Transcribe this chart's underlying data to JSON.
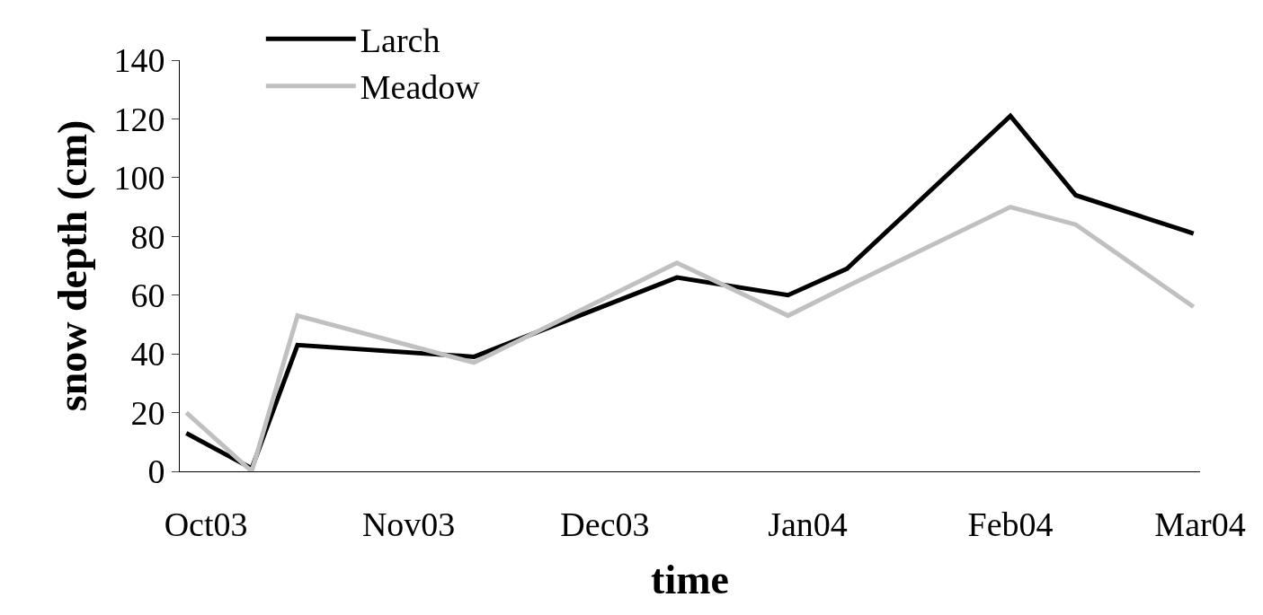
{
  "chart_data": {
    "type": "line",
    "xlabel": "time",
    "ylabel": "snow depth (cm)",
    "x": [
      "2003-09-28",
      "2003-10-08",
      "2003-10-15",
      "2003-11-11",
      "2003-12-12",
      "2003-12-29",
      "2004-01-07",
      "2004-02-01",
      "2004-02-11",
      "2004-02-29"
    ],
    "series": [
      {
        "name": "Larch",
        "color": "#000000",
        "values": [
          13,
          1,
          43,
          39,
          66,
          60,
          69,
          121,
          94,
          81
        ]
      },
      {
        "name": "Meadow",
        "color": "#c0c0c0",
        "values": [
          20,
          0,
          53,
          37,
          71,
          53,
          63,
          90,
          84,
          56
        ]
      }
    ],
    "xlim": [
      "2003-09-27",
      "2004-03-01"
    ],
    "xticks": [
      {
        "value": "2003-10-01",
        "label": "Oct03"
      },
      {
        "value": "2003-11-01",
        "label": "Nov03"
      },
      {
        "value": "2003-12-01",
        "label": "Dec03"
      },
      {
        "value": "2004-01-01",
        "label": "Jan04"
      },
      {
        "value": "2004-02-01",
        "label": "Feb04"
      },
      {
        "value": "2004-03-01",
        "label": "Mar04"
      }
    ],
    "ylim": [
      0,
      140
    ],
    "yticks": [
      0,
      20,
      40,
      60,
      80,
      100,
      120,
      140
    ],
    "legend": "top left",
    "marker": "none",
    "line_style": "solid"
  }
}
